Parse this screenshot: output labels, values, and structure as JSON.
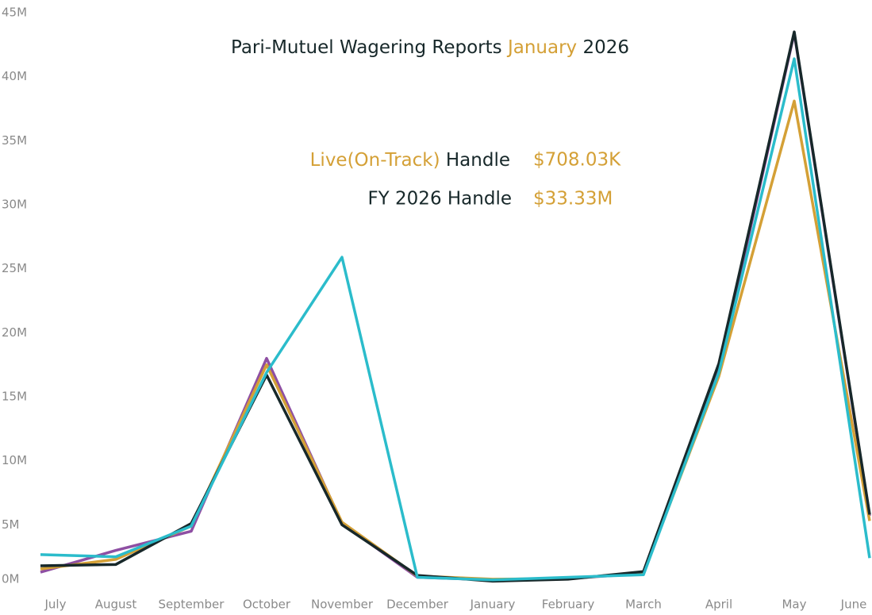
{
  "chart_data": {
    "type": "line",
    "title": [
      "Pari-Mutuel Wagering Reports",
      "January",
      "2026"
    ],
    "annotations": [
      {
        "parts": [
          "Live(On-Track)",
          "Handle"
        ],
        "value": "$708.03K"
      },
      {
        "parts": [
          "FY 2026 Handle"
        ],
        "value": "$33.33M"
      }
    ],
    "categories": [
      "July",
      "August",
      "September",
      "October",
      "November",
      "December",
      "January",
      "February",
      "March",
      "April",
      "May",
      "June"
    ],
    "series": [
      {
        "color": "#8e4fa3",
        "values": [
          1.3,
          3.0,
          4.5,
          18.0,
          5.1,
          0.9,
          0.7,
          0.8,
          1.2,
          17.2,
          43.4,
          5.7
        ]
      },
      {
        "color": "#d4a036",
        "values": [
          1.55,
          2.3,
          4.9,
          17.5,
          5.2,
          1.0,
          0.75,
          0.8,
          1.25,
          16.6,
          38.1,
          5.3
        ]
      },
      {
        "color": "#17282a",
        "values": [
          1.8,
          1.9,
          5.1,
          16.7,
          5.0,
          1.05,
          0.6,
          0.75,
          1.35,
          17.6,
          43.5,
          5.8
        ]
      },
      {
        "color": "#2bbccb",
        "values": [
          2.67,
          2.5,
          4.9,
          16.9,
          25.9,
          0.9,
          0.7,
          0.9,
          1.1,
          16.9,
          41.4,
          2.4
        ]
      }
    ],
    "ylim": [
      0,
      45
    ],
    "yticks": [
      {
        "value": 0,
        "label": "0M"
      },
      {
        "value": 5,
        "label": "5M"
      },
      {
        "value": 10,
        "label": "10M"
      },
      {
        "value": 15,
        "label": "15M"
      },
      {
        "value": 20,
        "label": "20M"
      },
      {
        "value": 25,
        "label": "25M"
      },
      {
        "value": 30,
        "label": "30M"
      },
      {
        "value": 35,
        "label": "35M"
      },
      {
        "value": 40,
        "label": "40M"
      },
      {
        "value": 45,
        "label": "45M"
      }
    ],
    "grid": false
  }
}
